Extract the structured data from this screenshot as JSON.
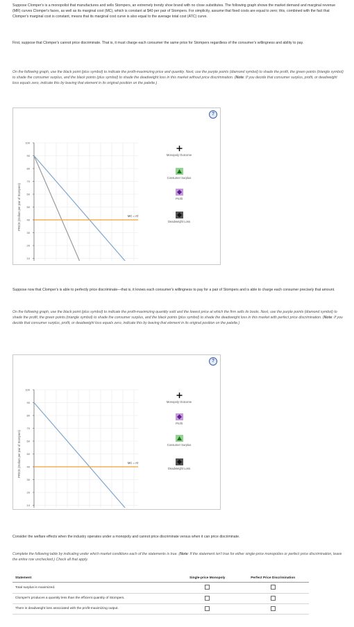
{
  "intro": {
    "p1": "Suppose Clomper's is a monopolist that manufactures and sells Stompers, an extremely trendy shoe brand with no close substitutes. The following graph shows the market demand and marginal revenue (MR) curves Clomper's faces, as well as its marginal cost (MC), which is constant at $40 per pair of Stompers. For simplicity, assume that fixed costs are equal to zero; this, combined with the fact that Clomper's marginal cost is constant, means that its marginal cost curve is also equal to the average total cost (ATC) curve.",
    "p2": "First, suppose that Clomper's cannot price discriminate. That is, it must charge each consumer the same price for Stompers regardless of the consumer's willingness and ability to pay.",
    "p3_pre": "On the following graph, use the black point (plus symbol) to indicate the profit-maximizing price and quantity. Next, use the purple points (diamond symbol) to shade the profit, the green points (triangle symbol) to shade the consumer surplus, and the black points (plus symbol) to shade the deadweight loss in this market without price discrimination. (",
    "p3_note": "Note",
    "p3_post": ": If you decide that consumer surplus, profit, or deadweight loss equals zero, indicate this by leaving that element in its original position on the palette.)"
  },
  "graph1": {
    "help": "?",
    "palette": [
      "Monopoly Outcome",
      "Consumer Surplus",
      "Profit",
      "Deadweight Loss"
    ]
  },
  "mid": {
    "p4": "Suppose now that Clomper's is able to perfectly price discriminate—that is, it knows each consumer's willingness to pay for a pair of Stompers and is able to charge each consumer precisely that amount.",
    "p5_pre": "On the following graph, use the black point (plus symbol) to indicate the profit-maximizing quantity sold and the lowest price at which the firm sells its boots. Next, use the purple points (diamond symbol) to shade the profit, the green points (triangle symbol) to shade the consumer surplus, and the black points (plus symbol) to shade the deadweight loss in this market with perfect price discrimination. (",
    "p5_note": "Note",
    "p5_post": ": If you decide that consumer surplus, profit, or deadweight loss equals zero, indicate this by leaving that element in its original position on the palette.)"
  },
  "graph2": {
    "help": "?",
    "palette": [
      "Monopoly Outcome",
      "Profit",
      "Consumer Surplus",
      "Deadweight Loss"
    ]
  },
  "welfare": {
    "p6": "Consider the welfare effects when the industry operates under a monopoly and cannot price discriminate versus when it can price discriminate.",
    "p7_pre": "Complete the following table by indicating under which market conditions each of the statements is true. (",
    "p7_note": "Note",
    "p7_post": ": If the statement isn't true for either single-price monopolies or perfect price discrimination, leave the entire row unchecked.) Check all that apply."
  },
  "table": {
    "headers": [
      "Statement",
      "Single-price Monopoly",
      "Perfect Price Discrimination"
    ],
    "rows": [
      {
        "statement": "Total surplus is maximized."
      },
      {
        "statement": "Clomper's produces a quantity less than the efficient quantity of Stompers."
      },
      {
        "statement": "There is deadweight loss associated with the profit-maximizing output."
      }
    ]
  },
  "chart_data": [
    {
      "type": "line",
      "title": "",
      "xlabel": "QUANTITY (Pairs of Stompers)",
      "ylabel": "PRICE (Dollars per pair of Stompers)",
      "xlim": [
        0,
        800
      ],
      "ylim": [
        0,
        100
      ],
      "xticks": [
        0,
        80,
        160,
        240,
        320,
        400,
        480,
        560,
        640,
        720,
        800
      ],
      "yticks": [
        0,
        10,
        20,
        30,
        40,
        50,
        60,
        70,
        80,
        90,
        100
      ],
      "series": [
        {
          "name": "Demand",
          "color": "#7fa7cf",
          "points": [
            [
              0,
              90
            ],
            [
              720,
              0
            ]
          ]
        },
        {
          "name": "MR",
          "color": "#9a9a9a",
          "points": [
            [
              0,
              90
            ],
            [
              360,
              0
            ]
          ]
        },
        {
          "name": "MC = ATC",
          "color": "#f0a030",
          "points": [
            [
              0,
              40
            ],
            [
              800,
              40
            ]
          ]
        }
      ]
    },
    {
      "type": "line",
      "title": "",
      "xlabel": "QUANTITY (Pairs of Stompers)",
      "ylabel": "PRICE (Dollars per pair of Stompers)",
      "xlim": [
        0,
        800
      ],
      "ylim": [
        0,
        100
      ],
      "xticks": [
        0,
        80,
        160,
        240,
        320,
        400,
        480,
        560,
        640,
        720,
        800
      ],
      "yticks": [
        0,
        10,
        20,
        30,
        40,
        50,
        60,
        70,
        80,
        90,
        100
      ],
      "series": [
        {
          "name": "Demand",
          "color": "#7fa7cf",
          "points": [
            [
              0,
              90
            ],
            [
              720,
              0
            ]
          ]
        },
        {
          "name": "MC = ATC",
          "color": "#f0a030",
          "points": [
            [
              0,
              40
            ],
            [
              800,
              40
            ]
          ]
        }
      ]
    }
  ]
}
